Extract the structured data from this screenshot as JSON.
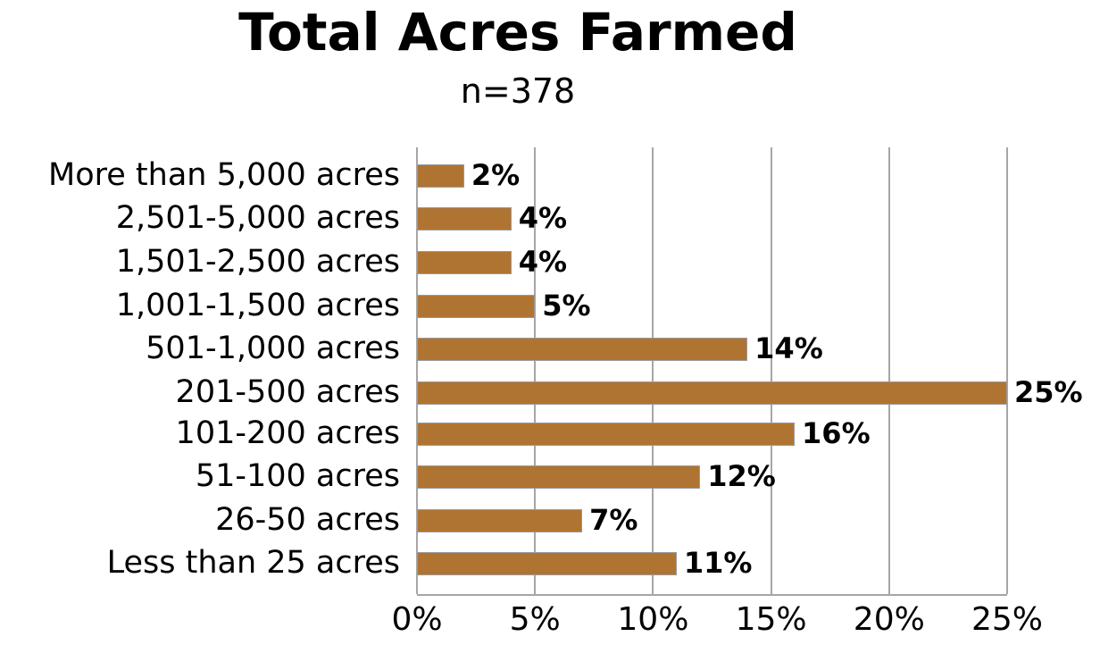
{
  "chart_data": {
    "type": "bar",
    "orientation": "horizontal",
    "title": "Total Acres Farmed",
    "subtitle": "n=378",
    "xlabel": "",
    "ylabel": "",
    "xlim": [
      0,
      25
    ],
    "grid": true,
    "categories": [
      "More than 5,000 acres",
      "2,501-5,000 acres",
      "1,501-2,500 acres",
      "1,001-1,500 acres",
      "501-1,000 acres",
      "201-500 acres",
      "101-200 acres",
      "51-100 acres",
      "26-50 acres",
      "Less than 25 acres"
    ],
    "values": [
      2,
      4,
      4,
      5,
      14,
      25,
      16,
      12,
      7,
      11
    ],
    "value_labels": [
      "2%",
      "4%",
      "4%",
      "5%",
      "14%",
      "25%",
      "16%",
      "12%",
      "7%",
      "11%"
    ],
    "x_ticks": [
      "0%",
      "5%",
      "10%",
      "15%",
      "20%",
      "25%"
    ],
    "bar_color": "#B07432"
  }
}
